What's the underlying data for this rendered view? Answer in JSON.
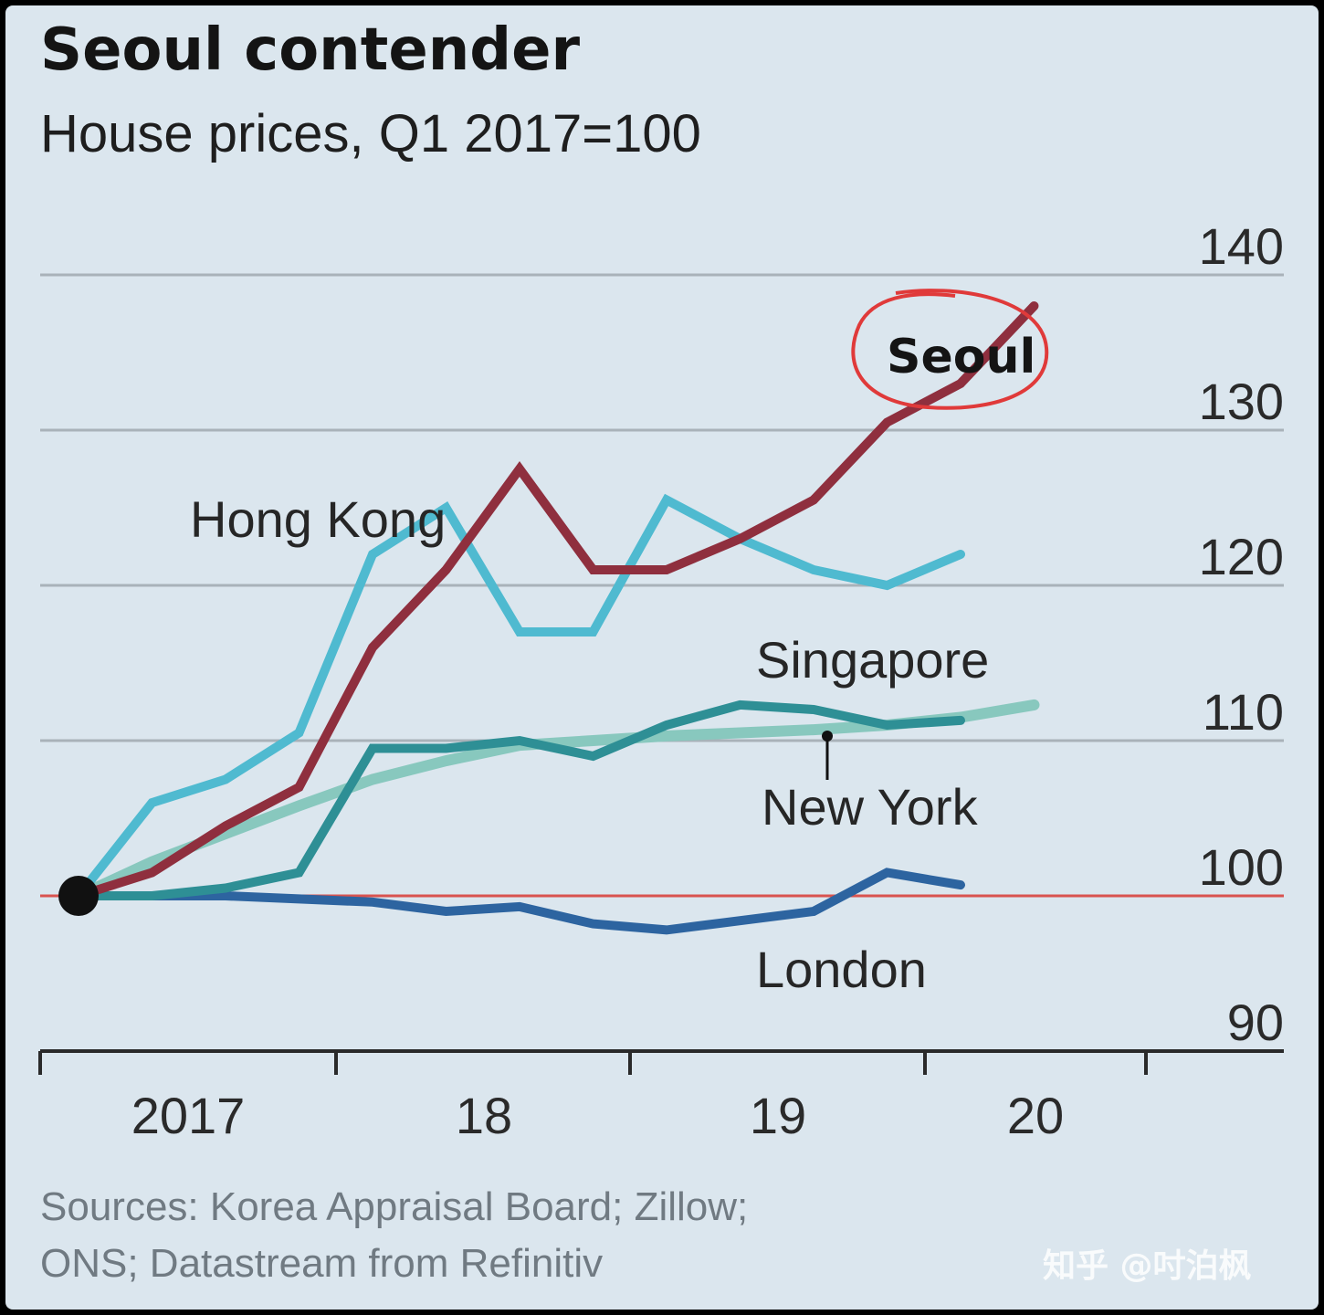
{
  "chart_data": {
    "type": "line",
    "title": "Seoul contender",
    "subtitle": "House prices, Q1 2017=100",
    "x_ticks": [
      "2017",
      "18",
      "19",
      "20"
    ],
    "y_ticks": [
      90,
      100,
      110,
      120,
      130,
      140
    ],
    "ylim": [
      90,
      140
    ],
    "baseline": 100,
    "x": [
      "2017-Q1",
      "2017-Q2",
      "2017-Q3",
      "2017-Q4",
      "2018-Q1",
      "2018-Q2",
      "2018-Q3",
      "2018-Q4",
      "2019-Q1",
      "2019-Q2",
      "2019-Q3",
      "2019-Q4",
      "2020-Q1",
      "2020-Q2",
      "2020-Q3"
    ],
    "series": [
      {
        "name": "Hong Kong",
        "color": "#4fbad0",
        "values": [
          100,
          106,
          107.5,
          110.5,
          122,
          125,
          117,
          117,
          125.5,
          123,
          121,
          120,
          122,
          null,
          null
        ]
      },
      {
        "name": "Seoul",
        "color": "#8f2f3e",
        "values": [
          100,
          101.5,
          104.5,
          107,
          116,
          121,
          127.5,
          121,
          121,
          123,
          125.5,
          130.5,
          133,
          138,
          null
        ]
      },
      {
        "name": "Singapore",
        "color": "#2e8f95",
        "values": [
          100,
          100,
          100.5,
          101.5,
          109.5,
          109.5,
          110,
          109,
          111,
          112.3,
          112,
          111,
          111.3,
          null,
          null
        ]
      },
      {
        "name": "New York",
        "color": "#88c8be",
        "values": [
          100,
          102.2,
          104,
          105.8,
          107.5,
          108.7,
          109.7,
          110,
          110.3,
          110.5,
          110.7,
          111,
          111.5,
          112.3,
          null
        ]
      },
      {
        "name": "London",
        "color": "#2d64a0",
        "values": [
          100,
          100,
          100,
          99.8,
          99.6,
          99,
          99.3,
          98.2,
          97.8,
          98.4,
          99,
          101.5,
          100.7,
          null,
          null
        ]
      }
    ],
    "annotations": [
      "Seoul"
    ],
    "grid": "horizontal",
    "legend": "none (direct labels)"
  },
  "source_text": {
    "line1": "Sources: Korea Appraisal Board; Zillow;",
    "line2": "ONS; Datastream from Refinitiv"
  },
  "watermark": "知乎 @吋泊枫"
}
